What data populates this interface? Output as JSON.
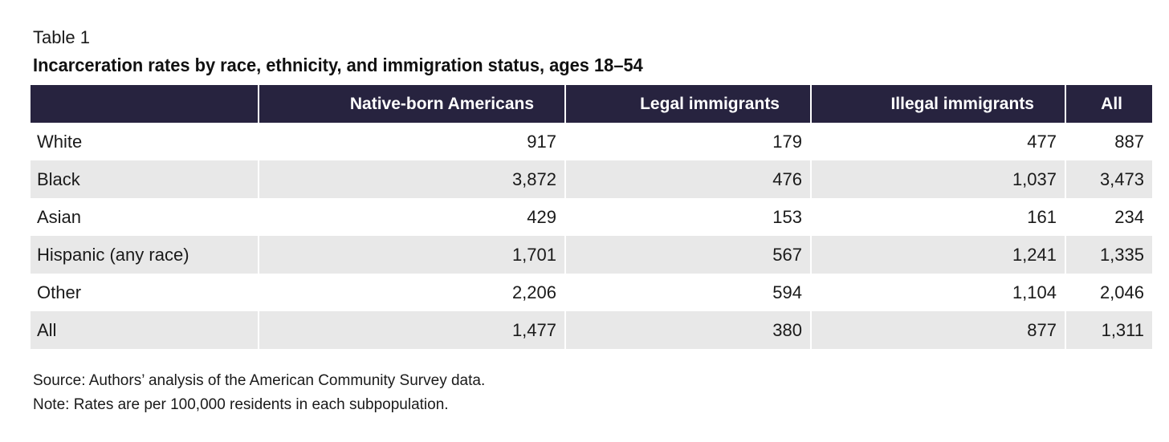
{
  "table_label": "Table 1",
  "title": "Incarceration rates by race, ethnicity, and immigration status, ages 18–54",
  "columns": [
    "",
    "Native-born Americans",
    "Legal immigrants",
    "Illegal immigrants",
    "All"
  ],
  "rows": [
    {
      "label": "White",
      "native": "917",
      "legal": "179",
      "illegal": "477",
      "all": "887"
    },
    {
      "label": "Black",
      "native": "3,872",
      "legal": "476",
      "illegal": "1,037",
      "all": "3,473"
    },
    {
      "label": "Asian",
      "native": "429",
      "legal": "153",
      "illegal": "161",
      "all": "234"
    },
    {
      "label": "Hispanic (any race)",
      "native": "1,701",
      "legal": "567",
      "illegal": "1,241",
      "all": "1,335"
    },
    {
      "label": "Other",
      "native": "2,206",
      "legal": "594",
      "illegal": "1,104",
      "all": "2,046"
    },
    {
      "label": "All",
      "native": "1,477",
      "legal": "380",
      "illegal": "877",
      "all": "1,311"
    }
  ],
  "source": "Source: Authors’ analysis of the American Community Survey data.",
  "note": "Note: Rates are per 100,000 residents in each subpopulation.",
  "colors": {
    "header_bg": "#27233f",
    "header_text": "#ffffff",
    "stripe": "#e8e8e8"
  }
}
